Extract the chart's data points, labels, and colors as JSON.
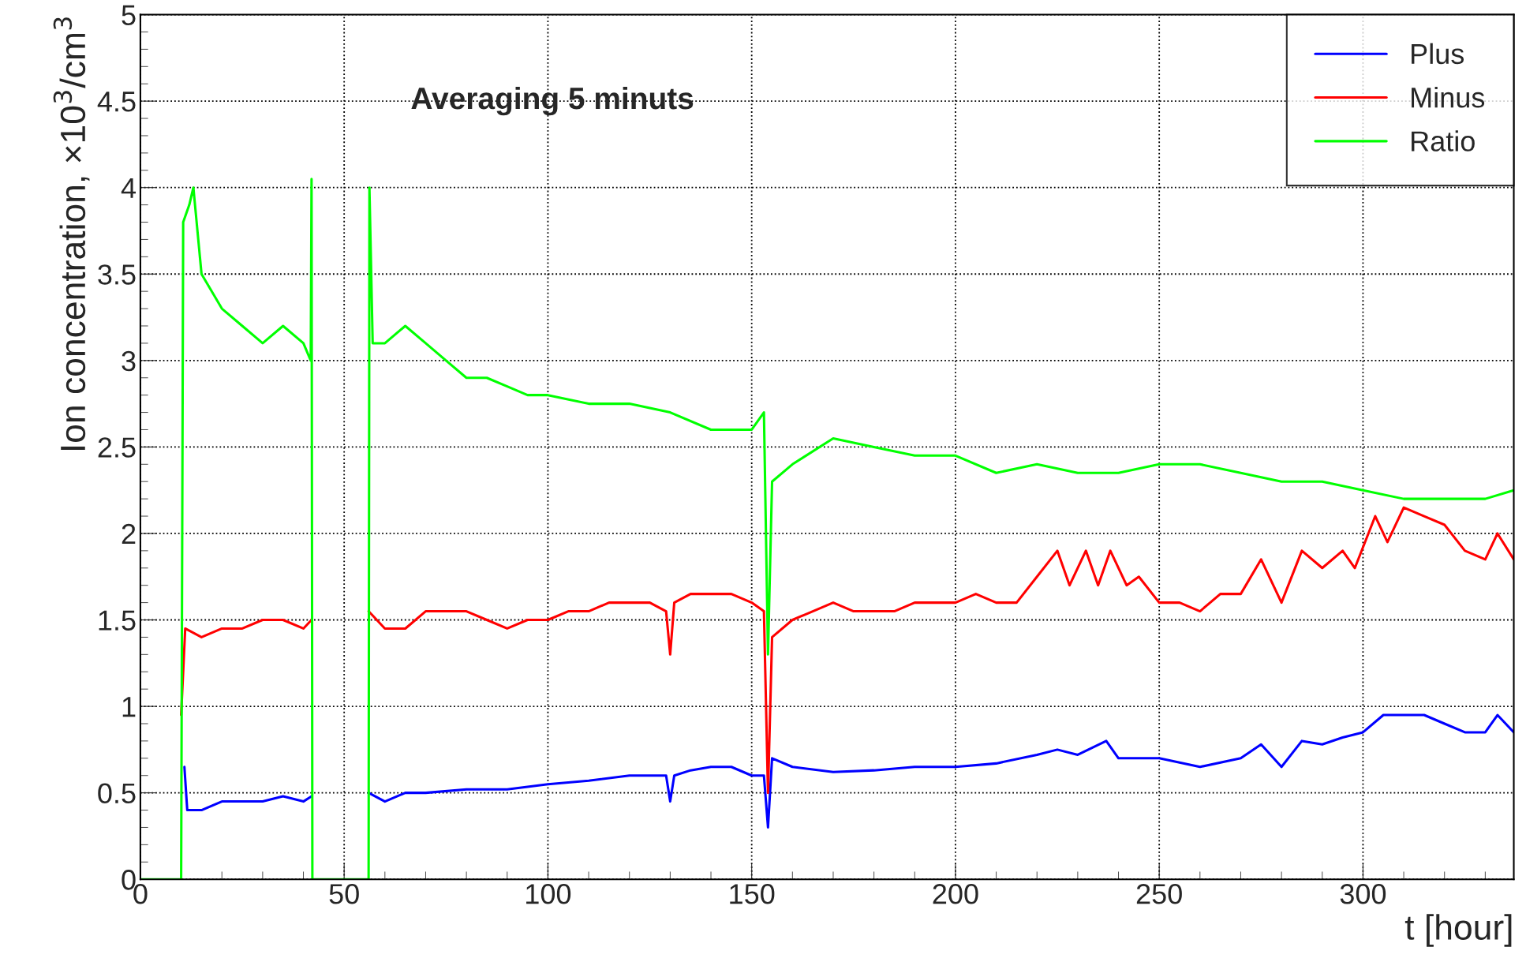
{
  "chart_data": {
    "type": "line",
    "title": "Averaging 5 minuts",
    "xlabel": "t [hour]",
    "ylabel": "Ion concentration, ×10$^{3}$/cm$^{3}$",
    "xlim": [
      0,
      337
    ],
    "xticks": [
      0,
      50,
      100,
      150,
      200,
      250,
      300
    ],
    "ylim": [
      0,
      5
    ],
    "yticks": [
      0,
      0.5,
      1,
      1.5,
      2,
      2.5,
      3,
      3.5,
      4,
      4.5,
      5
    ],
    "grid": true,
    "legend": "top right",
    "marker": "none",
    "line_style": "solid",
    "series": [
      {
        "name": "Plus",
        "color": "#0000ff",
        "x": [
          10.8,
          11.5,
          15,
          20,
          25,
          30,
          35,
          40,
          42,
          49,
          56,
          60,
          65,
          70,
          80,
          90,
          100,
          110,
          120,
          129,
          130,
          131,
          135,
          140,
          145,
          150,
          153,
          154,
          155,
          160,
          170,
          180,
          190,
          200,
          210,
          220,
          225,
          230,
          237,
          240,
          250,
          260,
          270,
          275,
          280,
          285,
          290,
          295,
          300,
          305,
          310,
          315,
          320,
          325,
          330,
          333,
          337
        ],
        "values": [
          0.65,
          0.4,
          0.4,
          0.45,
          0.45,
          0.45,
          0.48,
          0.45,
          0.48,
          null,
          0.5,
          0.45,
          0.5,
          0.5,
          0.52,
          0.52,
          0.55,
          0.57,
          0.6,
          0.6,
          0.45,
          0.6,
          0.63,
          0.65,
          0.65,
          0.6,
          0.6,
          0.3,
          0.7,
          0.65,
          0.62,
          0.63,
          0.65,
          0.65,
          0.67,
          0.72,
          0.75,
          0.72,
          0.8,
          0.7,
          0.7,
          0.65,
          0.7,
          0.78,
          0.65,
          0.8,
          0.78,
          0.82,
          0.85,
          0.95,
          0.95,
          0.95,
          0.9,
          0.85,
          0.85,
          0.95,
          0.85
        ]
      },
      {
        "name": "Minus",
        "color": "#ff0000",
        "x": [
          10,
          11,
          15,
          20,
          25,
          30,
          35,
          40,
          42,
          49,
          56,
          60,
          65,
          70,
          75,
          80,
          85,
          90,
          95,
          100,
          105,
          110,
          115,
          120,
          125,
          129,
          130,
          131,
          135,
          140,
          145,
          150,
          153,
          154,
          155,
          160,
          165,
          170,
          175,
          180,
          185,
          190,
          195,
          200,
          205,
          210,
          215,
          220,
          225,
          228,
          232,
          235,
          238,
          242,
          245,
          250,
          255,
          260,
          265,
          270,
          275,
          280,
          285,
          290,
          295,
          298,
          303,
          306,
          310,
          315,
          320,
          325,
          330,
          333,
          337
        ],
        "values": [
          0.95,
          1.45,
          1.4,
          1.45,
          1.45,
          1.5,
          1.5,
          1.45,
          1.5,
          null,
          1.55,
          1.45,
          1.45,
          1.55,
          1.55,
          1.55,
          1.5,
          1.45,
          1.5,
          1.5,
          1.55,
          1.55,
          1.6,
          1.6,
          1.6,
          1.55,
          1.3,
          1.6,
          1.65,
          1.65,
          1.65,
          1.6,
          1.55,
          0.5,
          1.4,
          1.5,
          1.55,
          1.6,
          1.55,
          1.55,
          1.55,
          1.6,
          1.6,
          1.6,
          1.65,
          1.6,
          1.6,
          1.75,
          1.9,
          1.7,
          1.9,
          1.7,
          1.9,
          1.7,
          1.75,
          1.6,
          1.6,
          1.55,
          1.65,
          1.65,
          1.85,
          1.6,
          1.9,
          1.8,
          1.9,
          1.8,
          2.1,
          1.95,
          2.15,
          2.1,
          2.05,
          1.9,
          1.85,
          2.0,
          1.85
        ]
      },
      {
        "name": "Ratio",
        "color": "#00ff00",
        "x": [
          0,
          10,
          10.5,
          12,
          13,
          15,
          20,
          25,
          30,
          35,
          40,
          41.8,
          42,
          42.2,
          56,
          56.2,
          57,
          60,
          65,
          70,
          75,
          80,
          85,
          90,
          95,
          100,
          110,
          120,
          130,
          140,
          150,
          153,
          154,
          155,
          160,
          170,
          180,
          190,
          200,
          210,
          220,
          230,
          240,
          250,
          260,
          270,
          280,
          290,
          300,
          310,
          320,
          330,
          337
        ],
        "values": [
          0,
          0,
          3.8,
          3.9,
          4.0,
          3.5,
          3.3,
          3.2,
          3.1,
          3.2,
          3.1,
          3.0,
          4.05,
          0,
          0,
          4.0,
          3.1,
          3.1,
          3.2,
          3.1,
          3.0,
          2.9,
          2.9,
          2.85,
          2.8,
          2.8,
          2.75,
          2.75,
          2.7,
          2.6,
          2.6,
          2.7,
          1.3,
          2.3,
          2.4,
          2.55,
          2.5,
          2.45,
          2.45,
          2.35,
          2.4,
          2.35,
          2.35,
          2.4,
          2.4,
          2.35,
          2.3,
          2.3,
          2.25,
          2.2,
          2.2,
          2.2,
          2.25
        ]
      }
    ]
  }
}
